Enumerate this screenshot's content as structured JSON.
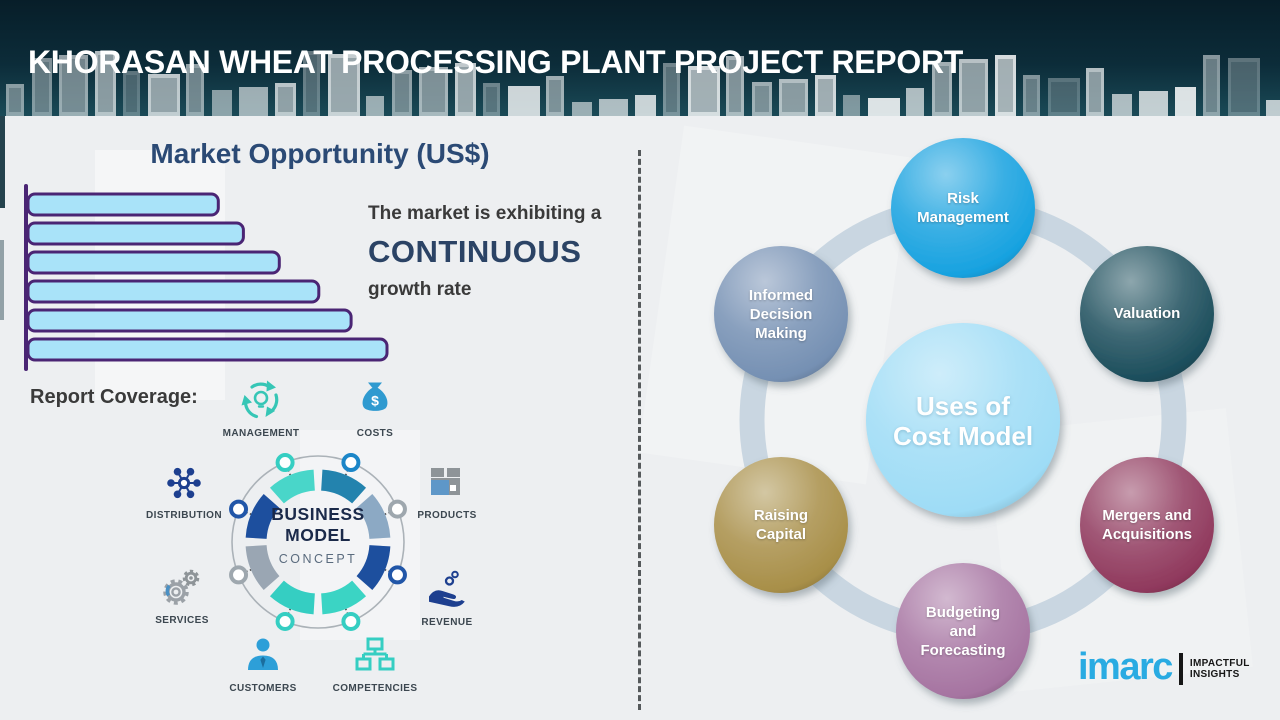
{
  "header": {
    "title": "KHORASAN WHEAT PROCESSING PLANT PROJECT REPORT"
  },
  "market_opportunity": {
    "title": "Market Opportunity (US$)",
    "growth_prefix": "The market is exhibiting a",
    "growth_highlight": "CONTINUOUS",
    "growth_suffix": "growth rate"
  },
  "chart_data": {
    "type": "bar",
    "orientation": "horizontal",
    "title": "Market Opportunity (US$)",
    "values": [
      53,
      60,
      70,
      81,
      90,
      100
    ],
    "value_note": "bars are unlabeled; values are relative lengths (% of longest bar), growing steadily to illustrate continuous growth",
    "categories": [
      "",
      "",
      "",
      "",
      "",
      ""
    ],
    "grid": false,
    "bar_fill": "#A9E3F9",
    "bar_border": "#4A2574",
    "axis_color": "#4A2574"
  },
  "report_coverage": {
    "label": "Report Coverage:",
    "center": {
      "line1": "BUSINESS",
      "line2": "MODEL",
      "line3": "CONCEPT"
    },
    "items": [
      {
        "label": "MANAGEMENT",
        "icon": "management-cycle-bulb-icon"
      },
      {
        "label": "COSTS",
        "icon": "money-bag-icon"
      },
      {
        "label": "DISTRIBUTION",
        "icon": "network-hub-icon"
      },
      {
        "label": "PRODUCTS",
        "icon": "product-box-icon"
      },
      {
        "label": "SERVICES",
        "icon": "gears-icon"
      },
      {
        "label": "REVENUE",
        "icon": "hand-coins-icon"
      },
      {
        "label": "CUSTOMERS",
        "icon": "person-icon"
      },
      {
        "label": "COMPETENCIES",
        "icon": "org-chart-icon"
      }
    ],
    "ring_segment_colors": [
      "#2383AE",
      "#8CA9C4",
      "#1D4F9E",
      "#3BD4C4",
      "#35CEC2",
      "#9AA6B3",
      "#1D4F9E",
      "#49D6C9"
    ],
    "node_ring_colors": [
      "#1C86C8",
      "#9EA7AE",
      "#2156A8",
      "#35CEC2",
      "#35CEC2",
      "#9EA7AE",
      "#2156A8",
      "#35CEC2"
    ]
  },
  "cost_model": {
    "center_label": "Uses of\nCost Model",
    "center_color": "#9EDCF6",
    "ring_color": "#C9D6E1",
    "nodes": [
      {
        "label": "Risk\nManagement",
        "color": "#17A2E0"
      },
      {
        "label": "Valuation",
        "color": "#1C4E5C"
      },
      {
        "label": "Mergers and\nAcquisitions",
        "color": "#90395D"
      },
      {
        "label": "Budgeting\nand\nForecasting",
        "color": "#A674A1"
      },
      {
        "label": "Raising\nCapital",
        "color": "#A88F48"
      },
      {
        "label": "Informed\nDecision\nMaking",
        "color": "#7590B3"
      }
    ]
  },
  "branding": {
    "logo_text": "imarc",
    "logo_color": "#29ABE2",
    "tagline_line1": "IMPACTFUL",
    "tagline_line2": "INSIGHTS"
  }
}
